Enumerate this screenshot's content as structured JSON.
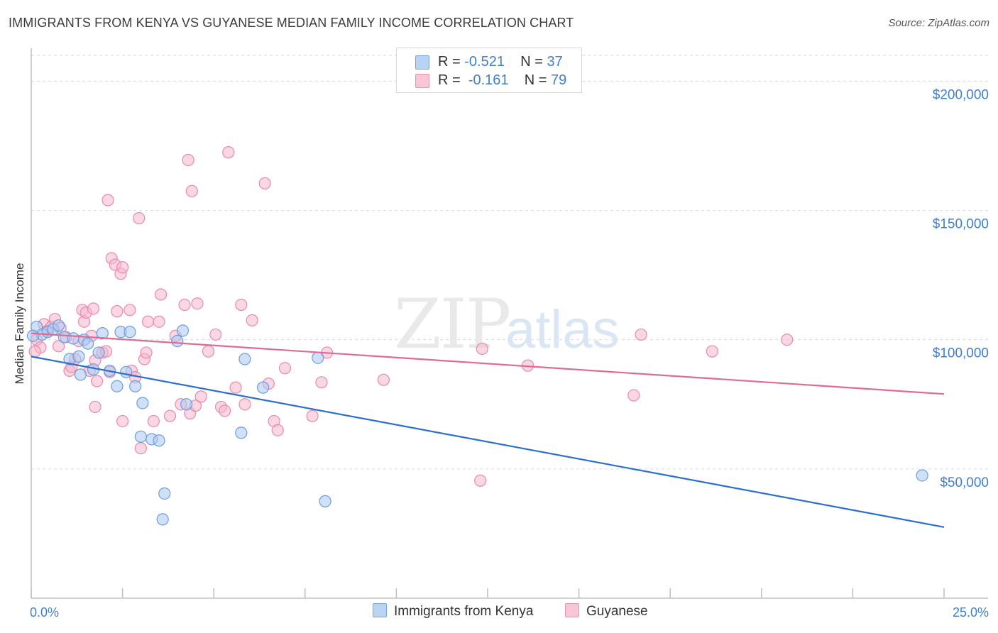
{
  "title": "IMMIGRANTS FROM KENYA VS GUYANESE MEDIAN FAMILY INCOME CORRELATION CHART",
  "source": "Source: ZipAtlas.com",
  "watermark": {
    "zip": "ZIP",
    "atlas": "atlas"
  },
  "legend": {
    "kenya": {
      "r_label": "R = ",
      "r_value": "-0.521",
      "n_label": "N = ",
      "n_value": "37"
    },
    "guyanese": {
      "r_label": "R = ",
      "r_value": "-0.161",
      "n_label": "N = ",
      "n_value": "79"
    }
  },
  "bottom_legend": {
    "kenya": "Immigrants from Kenya",
    "guyanese": "Guyanese"
  },
  "colors": {
    "kenya_fill": "#a9c8f0",
    "kenya_stroke": "#6a9de0",
    "kenya_line": "#2a6fd0",
    "guyanese_fill": "#f6b7cc",
    "guyanese_stroke": "#e88aaa",
    "guyanese_line": "#e06a95",
    "tick_text": "#3f7fd0",
    "grid": "#d9d9d9"
  },
  "chart_data": {
    "type": "scatter",
    "title": "IMMIGRANTS FROM KENYA VS GUYANESE MEDIAN FAMILY INCOME CORRELATION CHART",
    "xlabel": "",
    "ylabel": "Median Family Income",
    "xlim": [
      0,
      25
    ],
    "ylim": [
      0,
      210000
    ],
    "x_tick_labels": [
      "0.0%",
      "25.0%"
    ],
    "y_ticks": [
      50000,
      100000,
      150000,
      200000
    ],
    "y_tick_labels": [
      "$50,000",
      "$100,000",
      "$150,000",
      "$200,000"
    ],
    "series": [
      {
        "name": "Immigrants from Kenya",
        "r": -0.521,
        "n": 37,
        "trend": {
          "x": [
            0,
            25
          ],
          "y": [
            93500,
            27500
          ]
        },
        "points": [
          [
            0.15,
            105000
          ],
          [
            0.3,
            102000
          ],
          [
            0.45,
            103000
          ],
          [
            0.6,
            104000
          ],
          [
            0.75,
            105500
          ],
          [
            0.9,
            101000
          ],
          [
            1.05,
            92500
          ],
          [
            1.15,
            100500
          ],
          [
            1.3,
            93500
          ],
          [
            1.35,
            86500
          ],
          [
            1.45,
            100000
          ],
          [
            1.55,
            98500
          ],
          [
            1.7,
            88500
          ],
          [
            1.85,
            95000
          ],
          [
            1.95,
            102500
          ],
          [
            2.15,
            88000
          ],
          [
            2.35,
            82000
          ],
          [
            2.45,
            103000
          ],
          [
            2.6,
            87500
          ],
          [
            2.7,
            103000
          ],
          [
            2.85,
            82000
          ],
          [
            3.0,
            62500
          ],
          [
            3.05,
            75500
          ],
          [
            3.3,
            61500
          ],
          [
            3.5,
            61000
          ],
          [
            3.65,
            40500
          ],
          [
            3.6,
            30500
          ],
          [
            4.0,
            99500
          ],
          [
            4.15,
            103500
          ],
          [
            4.25,
            75000
          ],
          [
            5.75,
            64000
          ],
          [
            5.85,
            92500
          ],
          [
            6.35,
            81500
          ],
          [
            7.85,
            93000
          ],
          [
            8.05,
            37500
          ],
          [
            24.4,
            47500
          ],
          [
            0.05,
            101500
          ]
        ]
      },
      {
        "name": "Guyanese",
        "r": -0.161,
        "n": 79,
        "trend": {
          "x": [
            0,
            25
          ],
          "y": [
            102500,
            79000
          ]
        },
        "points": [
          [
            0.15,
            100000
          ],
          [
            0.25,
            97000
          ],
          [
            0.35,
            106000
          ],
          [
            0.45,
            103500
          ],
          [
            0.55,
            105000
          ],
          [
            0.65,
            108000
          ],
          [
            0.75,
            97500
          ],
          [
            0.8,
            104500
          ],
          [
            0.95,
            101000
          ],
          [
            1.05,
            88000
          ],
          [
            1.1,
            89500
          ],
          [
            1.2,
            92500
          ],
          [
            1.3,
            99500
          ],
          [
            1.4,
            111500
          ],
          [
            1.45,
            107000
          ],
          [
            1.5,
            110500
          ],
          [
            1.6,
            88000
          ],
          [
            1.65,
            101500
          ],
          [
            1.75,
            92000
          ],
          [
            1.8,
            84000
          ],
          [
            1.7,
            112000
          ],
          [
            1.75,
            74000
          ],
          [
            1.95,
            95000
          ],
          [
            2.05,
            95500
          ],
          [
            2.1,
            154000
          ],
          [
            2.15,
            87500
          ],
          [
            2.2,
            131500
          ],
          [
            2.3,
            129000
          ],
          [
            2.35,
            111000
          ],
          [
            2.45,
            125500
          ],
          [
            2.5,
            128000
          ],
          [
            2.5,
            68500
          ],
          [
            2.7,
            111500
          ],
          [
            2.75,
            88000
          ],
          [
            2.85,
            85500
          ],
          [
            2.95,
            147000
          ],
          [
            3.0,
            58000
          ],
          [
            3.1,
            92500
          ],
          [
            3.15,
            95000
          ],
          [
            3.2,
            107000
          ],
          [
            3.35,
            68500
          ],
          [
            3.5,
            107000
          ],
          [
            3.55,
            117500
          ],
          [
            3.8,
            70500
          ],
          [
            3.95,
            101500
          ],
          [
            4.1,
            75000
          ],
          [
            4.2,
            113500
          ],
          [
            4.3,
            169500
          ],
          [
            4.35,
            71500
          ],
          [
            4.4,
            157500
          ],
          [
            4.5,
            74500
          ],
          [
            4.55,
            114000
          ],
          [
            4.65,
            78000
          ],
          [
            4.85,
            95500
          ],
          [
            5.05,
            102000
          ],
          [
            5.2,
            74000
          ],
          [
            5.3,
            72500
          ],
          [
            5.4,
            172500
          ],
          [
            5.6,
            81500
          ],
          [
            5.75,
            113500
          ],
          [
            5.85,
            75000
          ],
          [
            6.05,
            107500
          ],
          [
            6.4,
            160500
          ],
          [
            6.5,
            83000
          ],
          [
            6.65,
            68500
          ],
          [
            6.75,
            65000
          ],
          [
            6.95,
            89000
          ],
          [
            7.7,
            70500
          ],
          [
            7.95,
            83500
          ],
          [
            8.1,
            95000
          ],
          [
            9.65,
            84500
          ],
          [
            12.3,
            45500
          ],
          [
            12.35,
            96500
          ],
          [
            13.6,
            90000
          ],
          [
            16.5,
            78500
          ],
          [
            16.7,
            102000
          ],
          [
            18.65,
            95500
          ],
          [
            20.7,
            100000
          ],
          [
            0.1,
            95500
          ]
        ]
      }
    ]
  }
}
